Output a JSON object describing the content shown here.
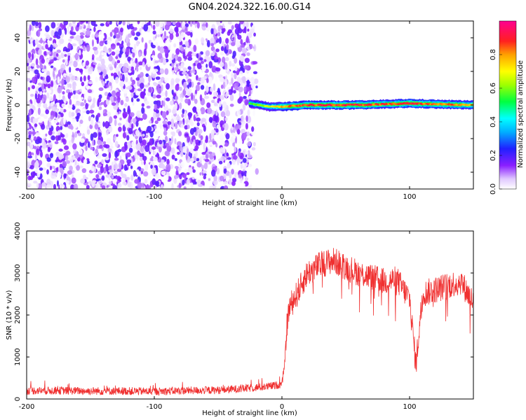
{
  "title": "GN04.2024.322.16.00.G14",
  "chart_data": [
    {
      "type": "heatmap",
      "xlabel": "Height of straight line (km)",
      "ylabel": "Frequency (Hz)",
      "xlim": [
        -200,
        150
      ],
      "ylim": [
        -50,
        50
      ],
      "xticks": [
        -200,
        -100,
        0,
        100
      ],
      "yticks": [
        -40,
        -20,
        0,
        20,
        40
      ],
      "colorbar": {
        "label": "Normalized spectral amplitude",
        "range": [
          0,
          1
        ],
        "ticks": [
          0.0,
          0.2,
          0.4,
          0.6,
          0.8
        ],
        "tick_labels": [
          "0.0",
          "0.2",
          "0.4",
          "0.6",
          "0.8"
        ]
      },
      "noise_region_x": [
        -200,
        -25
      ],
      "noise_amplitude_range": [
        0.0,
        0.2
      ],
      "signal_line": {
        "x": [
          -25,
          -10,
          0,
          20,
          40,
          60,
          80,
          100,
          120,
          150
        ],
        "frequency": [
          1,
          -1,
          -1,
          0,
          0,
          0,
          0.5,
          1,
          0.5,
          0
        ],
        "amplitude": [
          0.6,
          0.7,
          0.85,
          0.95,
          0.95,
          0.95,
          0.9,
          0.95,
          0.9,
          0.85
        ]
      }
    },
    {
      "type": "line",
      "xlabel": "Height of straight line (km)",
      "ylabel": "SNR (10 * v/v)",
      "xlim": [
        -200,
        150
      ],
      "ylim": [
        0,
        4000
      ],
      "xticks": [
        -200,
        -100,
        0,
        100
      ],
      "yticks": [
        0,
        1000,
        2000,
        3000,
        4000
      ],
      "series": [
        {
          "color": "#f03030",
          "x": [
            -200,
            -175,
            -150,
            -125,
            -100,
            -75,
            -50,
            -25,
            -10,
            0,
            2,
            4,
            6,
            10,
            15,
            20,
            30,
            40,
            50,
            60,
            70,
            80,
            90,
            95,
            100,
            105,
            110,
            120,
            130,
            140,
            150
          ],
          "values": [
            200,
            200,
            190,
            190,
            180,
            200,
            210,
            260,
            300,
            350,
            800,
            1800,
            2200,
            2400,
            2700,
            3000,
            3200,
            3300,
            3150,
            3000,
            2900,
            2800,
            2850,
            2600,
            2400,
            800,
            2500,
            2600,
            2700,
            2800,
            2300
          ]
        }
      ]
    }
  ]
}
